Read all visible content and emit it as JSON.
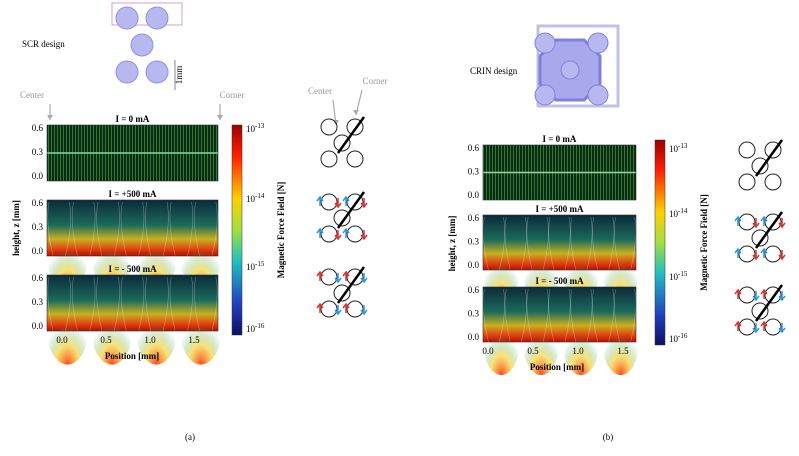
{
  "panels": [
    {
      "design": "SCR design",
      "scale": "1mm",
      "center": "Center",
      "corner": "Corner",
      "subplots": [
        "I = 0 mA",
        "I = +500 mA",
        "I = - 500 mA"
      ],
      "y_label": "height, z [mm]",
      "yticks": [
        "0.6",
        "0.3",
        "0.0"
      ],
      "xticks": [
        "0.0",
        "0.5",
        "1.0",
        "1.5"
      ],
      "x_label": "Position [mm]",
      "colorbar_ticks": [
        {
          "base": "10",
          "exp": "-13"
        },
        {
          "base": "10",
          "exp": "-14"
        },
        {
          "base": "10",
          "exp": "-15"
        },
        {
          "base": "10",
          "exp": "-16"
        }
      ],
      "colorbar_label": "Magnetic Force Field [N]",
      "caption": "(a)"
    },
    {
      "design": "CRIN design",
      "subplots": [
        "I = 0 mA",
        "I = +500 mA",
        "I = - 500 mA"
      ],
      "y_label": "height, z [mm]",
      "yticks": [
        "0.6",
        "0.3",
        "0.0"
      ],
      "xticks": [
        "0.0",
        "0.5",
        "1.0",
        "1.5"
      ],
      "x_label": "Position [mm]",
      "colorbar_ticks": [
        {
          "base": "10",
          "exp": "-13"
        },
        {
          "base": "10",
          "exp": "-14"
        },
        {
          "base": "10",
          "exp": "-15"
        },
        {
          "base": "10",
          "exp": "-16"
        }
      ],
      "colorbar_label": "Magnetic Force Field [N]",
      "caption": "(b)"
    }
  ]
}
